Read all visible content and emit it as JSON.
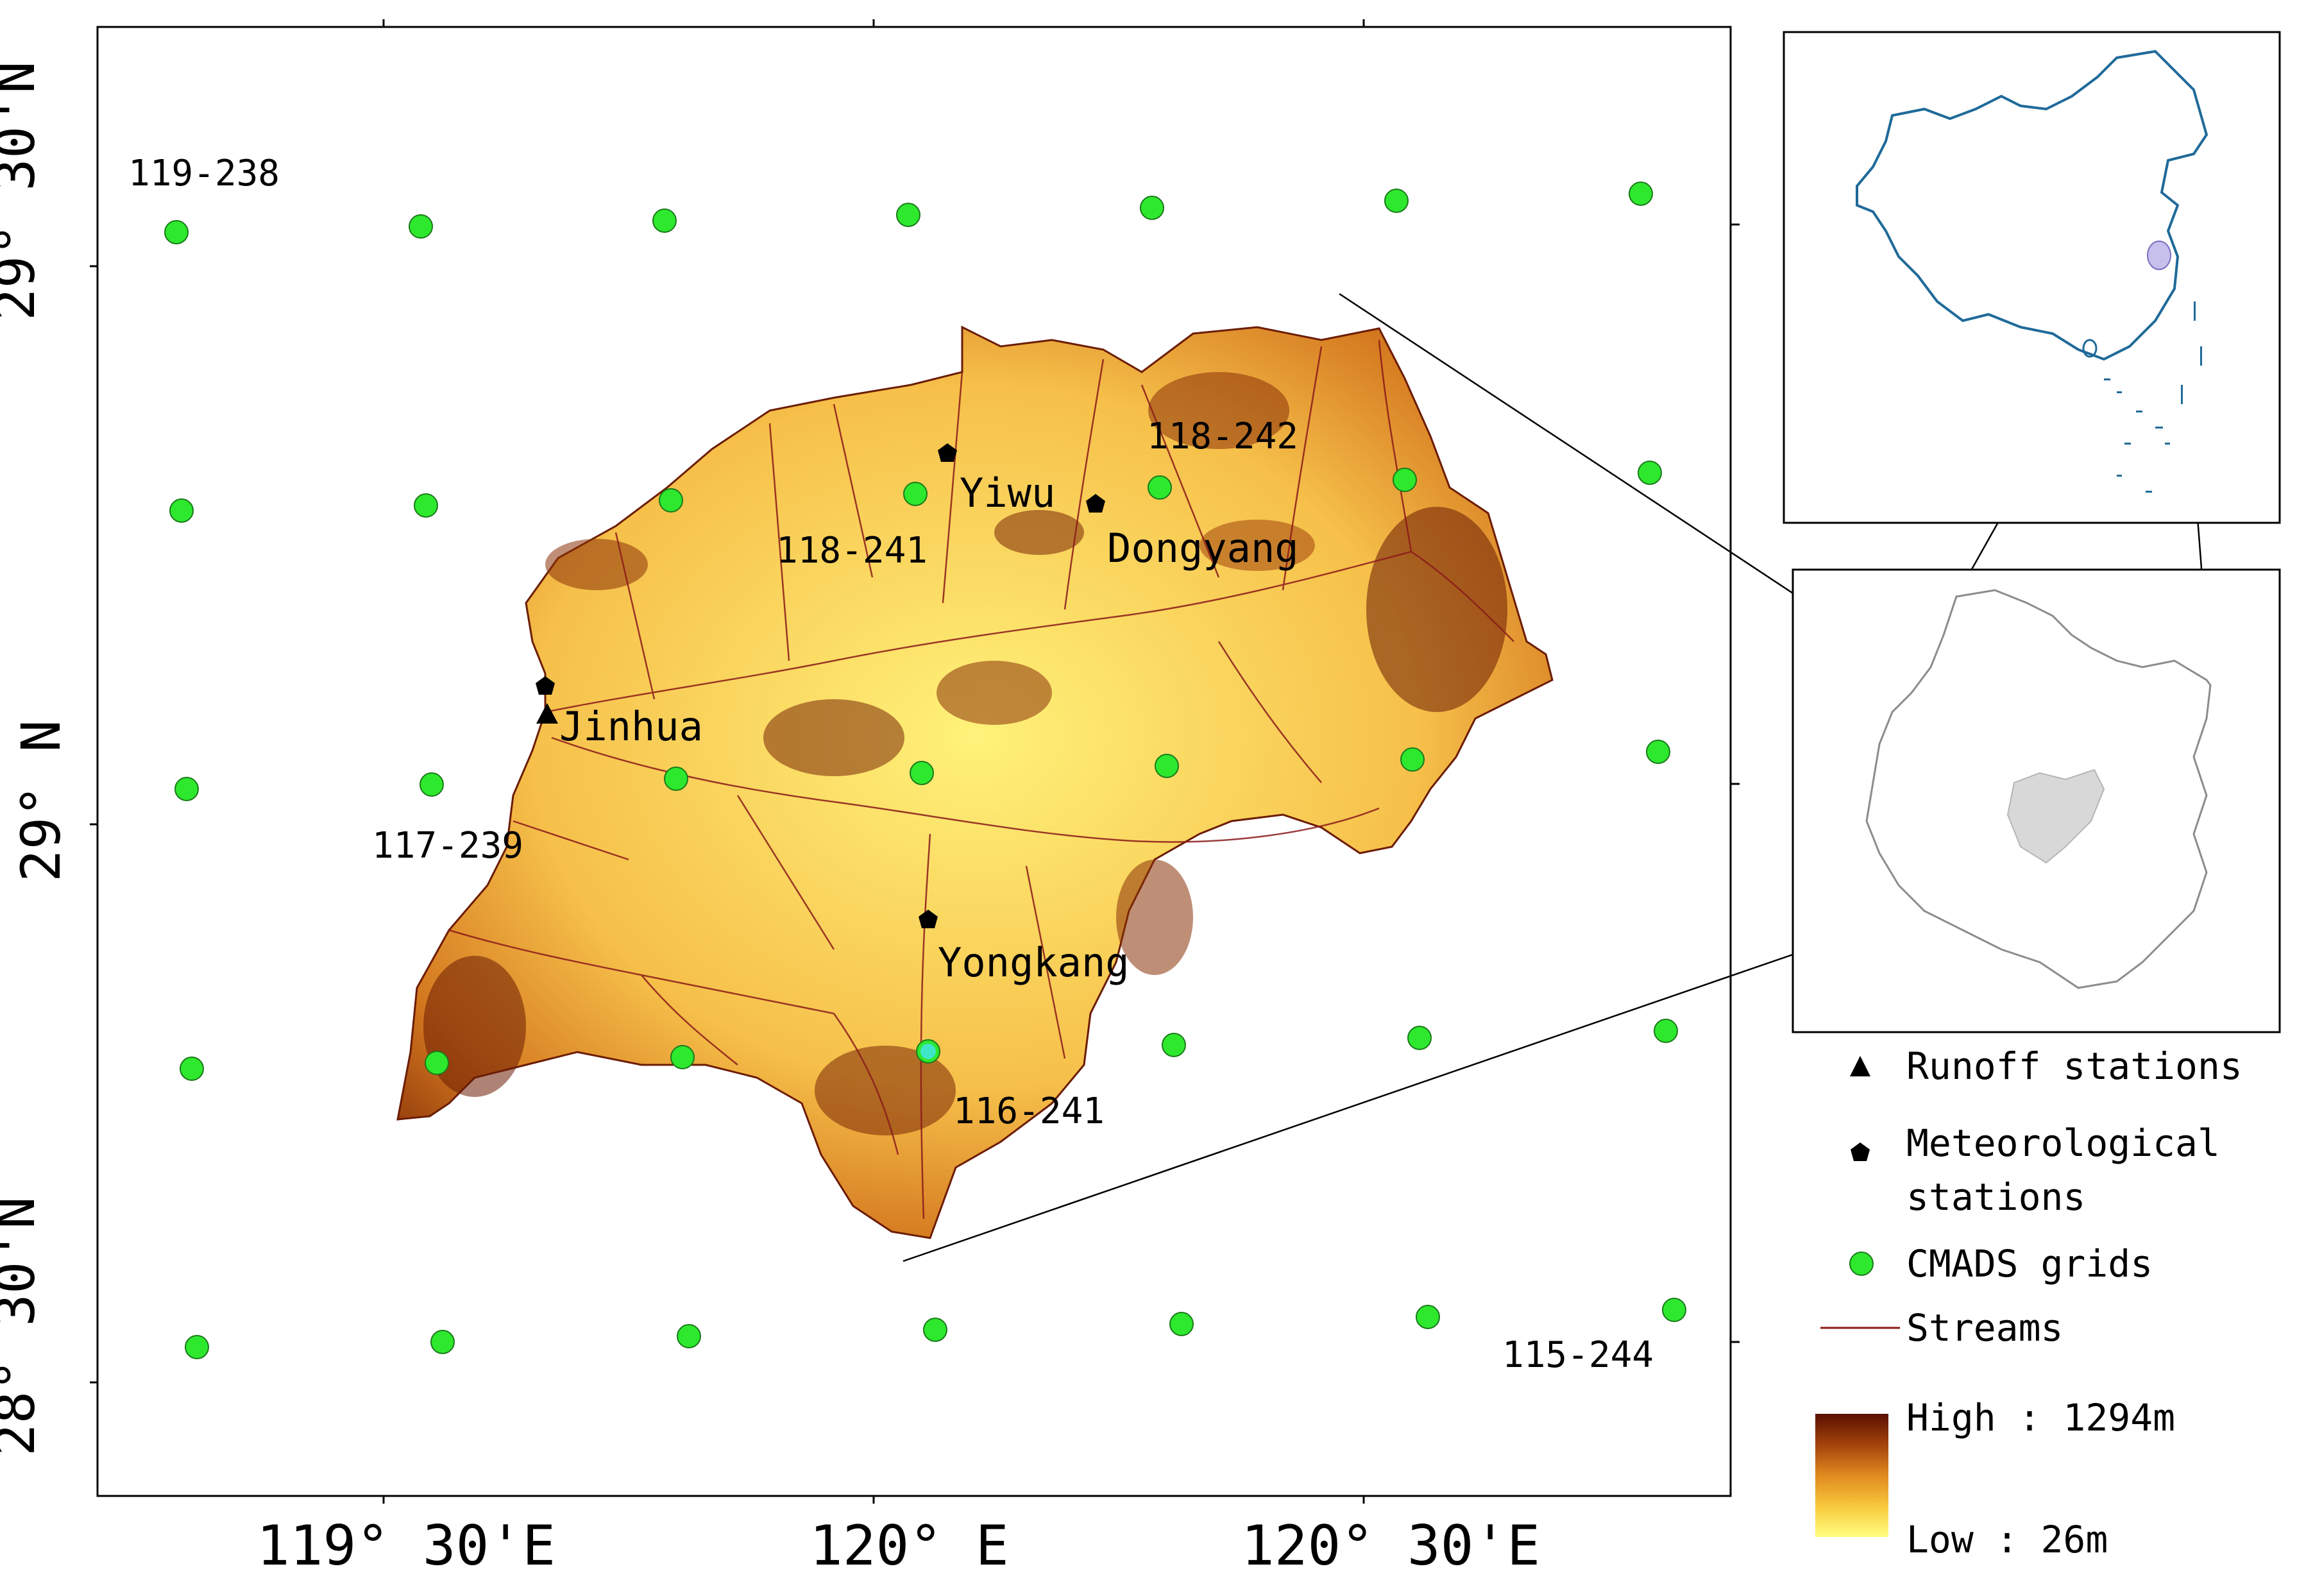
{
  "map": {
    "lat_labels": [
      "29° 30'N",
      "29° N",
      "28° 30'N"
    ],
    "lon_labels": [
      "119° 30'E",
      "120° E",
      "120° 30'E"
    ]
  },
  "stations": {
    "runoff": [
      {
        "name": "Jinhua"
      }
    ],
    "meteorological": [
      {
        "name": "Yiwu"
      },
      {
        "name": "Dongyang"
      },
      {
        "name": "Yongkang"
      },
      {
        "name": ""
      }
    ]
  },
  "grid_labels": [
    "119-238",
    "118-242",
    "118-241",
    "117-239",
    "116-241",
    "115-244"
  ],
  "legend": {
    "runoff": "Runoff stations",
    "meteo_line1": "Meteorological",
    "meteo_line2": "stations",
    "cmads": "CMADS grids",
    "streams": "Streams",
    "high": "High : 1294m",
    "low": "Low : 26m"
  },
  "colors": {
    "grid_point": "#2ee82e",
    "grid_highlight": "#3fe6c8",
    "stream": "#8b1a1a",
    "elev_low": "#ffff80",
    "elev_high": "#5a0f00",
    "country_outline": "#1f6a99",
    "province_fill": "#d8d8d8"
  },
  "elevation_range_m": [
    26,
    1294
  ]
}
